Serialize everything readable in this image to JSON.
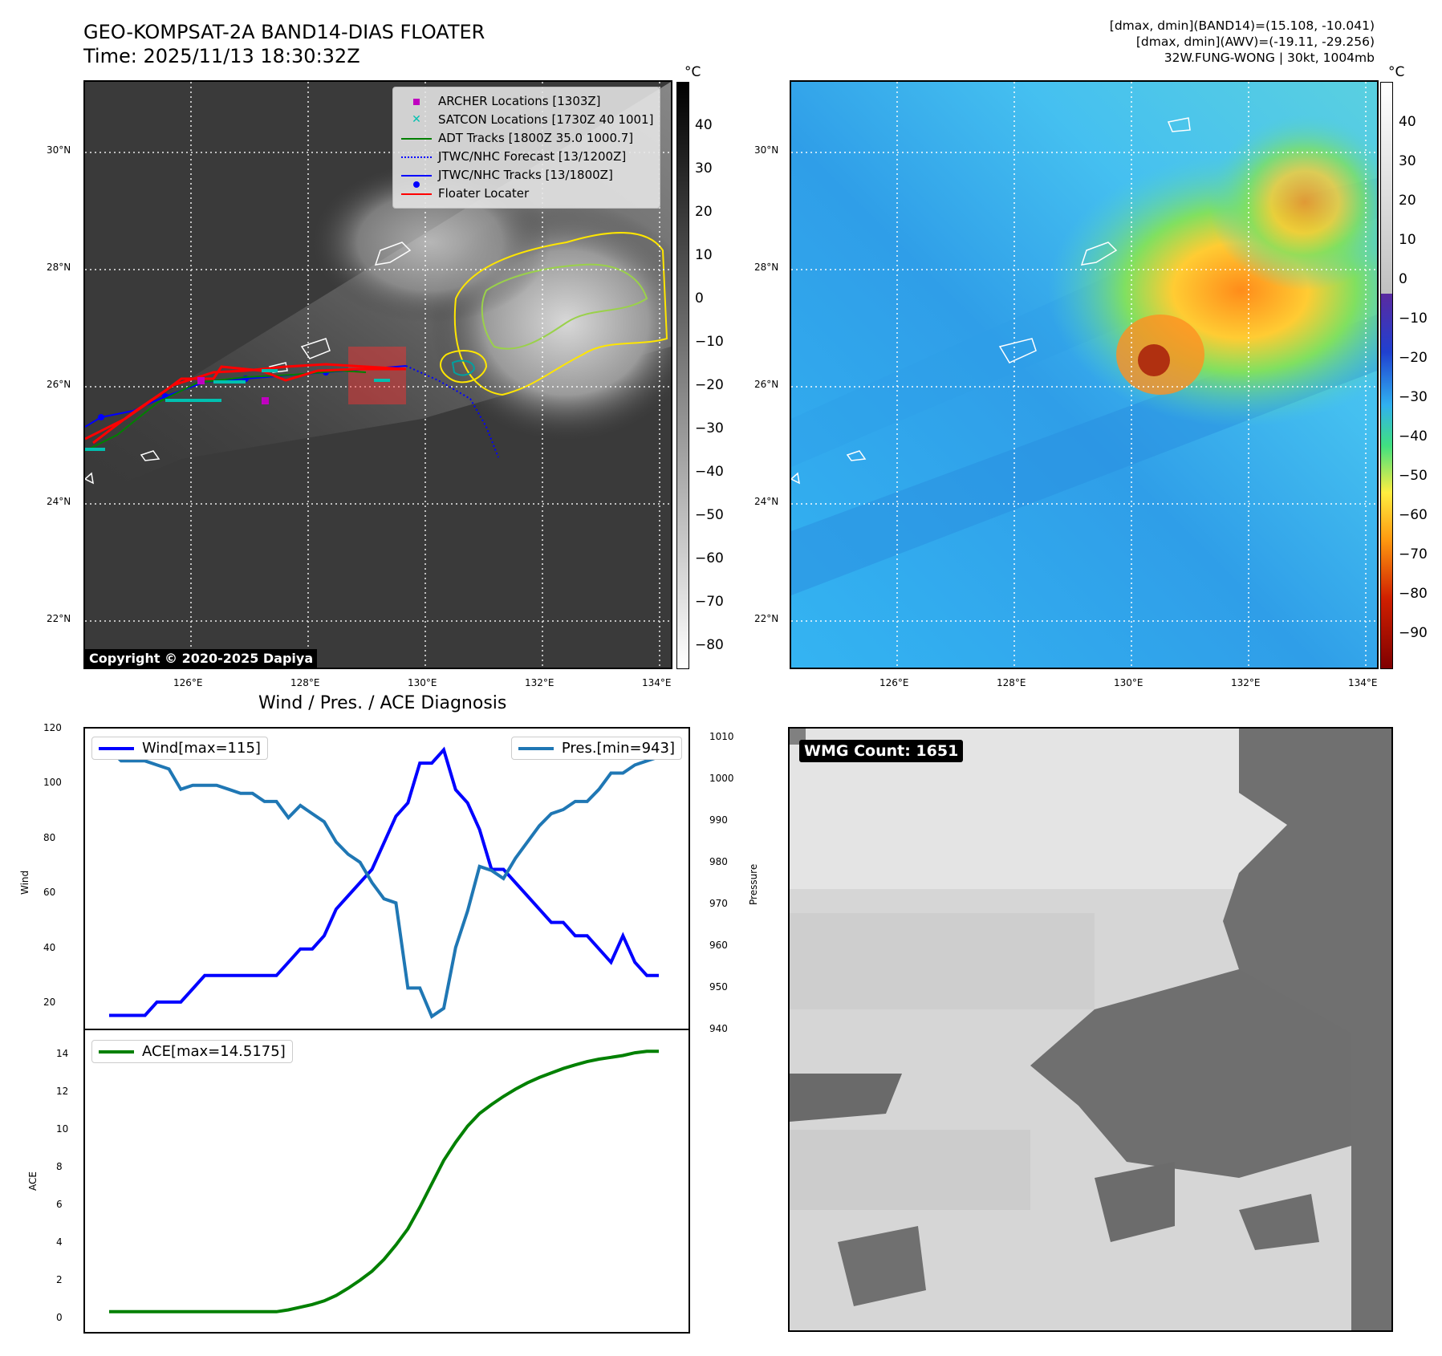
{
  "header": {
    "title_line1": "GEO-KOMPSAT-2A BAND14-DIAS FLOATER",
    "title_line2": "Time: 2025/11/13 18:30:32Z",
    "info_line1": "[dmax, dmin](BAND14)=(15.108, -10.041)",
    "info_line2": "[dmax, dmin](AWV)=(-19.11, -29.256)",
    "info_line3": "32W.FUNG-WONG | 30kt, 1004mb"
  },
  "map": {
    "lat_ticks": [
      "30°N",
      "28°N",
      "26°N",
      "24°N",
      "22°N"
    ],
    "lon_ticks": [
      "126°E",
      "128°E",
      "130°E",
      "132°E",
      "134°E"
    ],
    "legend": [
      {
        "label": "ARCHER Locations [1303Z]",
        "color": "#c000c0",
        "marker": "square"
      },
      {
        "label": "SATCON Locations [1730Z 40 1001]",
        "color": "#00c0b0",
        "marker": "x"
      },
      {
        "label": "ADT Tracks [1800Z 35.0 1000.7]",
        "color": "#008000",
        "marker": "line"
      },
      {
        "label": "JTWC/NHC Forecast [13/1200Z]",
        "color": "#0000ff",
        "marker": "dotted"
      },
      {
        "label": "JTWC/NHC Tracks [13/1800Z]",
        "color": "#0000ff",
        "marker": "line-dot"
      },
      {
        "label": "Floater Locater",
        "color": "#ff0000",
        "marker": "line"
      }
    ],
    "copyright": "Copyright © 2020-2025 Dapiya"
  },
  "colorbar_left": {
    "unit": "°C",
    "ticks": [
      "40",
      "30",
      "20",
      "10",
      "0",
      "−10",
      "−20",
      "−30",
      "−40",
      "−50",
      "−60",
      "−70",
      "−80"
    ]
  },
  "colorbar_right": {
    "unit": "°C",
    "ticks": [
      "40",
      "30",
      "20",
      "10",
      "0",
      "−10",
      "−20",
      "−30",
      "−40",
      "−50",
      "−60",
      "−70",
      "−80",
      "−90"
    ]
  },
  "diagnosis": {
    "title": "Wind / Pres. / ACE Diagnosis",
    "wind_label": "Wind",
    "pressure_label": "Pressure",
    "ace_label": "ACE",
    "wind_legend": "Wind[max=115]",
    "pres_legend": "Pres.[min=943]",
    "ace_legend": "ACE[max=14.5175]",
    "wind_ticks": [
      "120",
      "100",
      "80",
      "60",
      "40",
      "20"
    ],
    "pres_ticks": [
      "1010",
      "1000",
      "990",
      "980",
      "970",
      "960",
      "950",
      "940"
    ],
    "ace_ticks": [
      "14",
      "12",
      "10",
      "8",
      "6",
      "4",
      "2",
      "0"
    ],
    "wind_color": "#0000ff",
    "pres_color": "#1f77b4",
    "ace_color": "#008000"
  },
  "wmg": {
    "label": "WMG Count: 1651"
  },
  "chart_data": [
    {
      "type": "line",
      "title": "Wind / Pres. / ACE Diagnosis",
      "ylabel": "Wind",
      "y2label": "Pressure",
      "ylim": [
        10,
        120
      ],
      "y2lim": [
        940,
        1012
      ],
      "series": [
        {
          "name": "Wind[max=115]",
          "axis": "left",
          "values": [
            15,
            15,
            15,
            15,
            20,
            20,
            20,
            25,
            30,
            30,
            30,
            30,
            30,
            30,
            30,
            35,
            40,
            40,
            45,
            55,
            60,
            65,
            70,
            80,
            90,
            95,
            110,
            110,
            115,
            100,
            95,
            85,
            70,
            70,
            65,
            60,
            55,
            50,
            50,
            45,
            45,
            40,
            35,
            45,
            35,
            30,
            30
          ]
        },
        {
          "name": "Pres.[min=943]",
          "axis": "right",
          "values": [
            1009,
            1006,
            1006,
            1006,
            1005,
            1004,
            999,
            1000,
            1000,
            1000,
            999,
            998,
            998,
            996,
            996,
            992,
            995,
            993,
            991,
            986,
            983,
            981,
            976,
            972,
            971,
            950,
            950,
            943,
            945,
            960,
            969,
            980,
            979,
            977,
            982,
            986,
            990,
            993,
            994,
            996,
            996,
            999,
            1003,
            1003,
            1005,
            1006,
            1007
          ]
        }
      ]
    },
    {
      "type": "area",
      "ylabel": "ACE",
      "ylim": [
        -0.5,
        15
      ],
      "series": [
        {
          "name": "ACE[max=14.5175]",
          "values": [
            0,
            0,
            0,
            0,
            0,
            0,
            0,
            0,
            0,
            0,
            0,
            0,
            0,
            0,
            0,
            0.1,
            0.25,
            0.4,
            0.6,
            0.9,
            1.3,
            1.75,
            2.25,
            2.9,
            3.7,
            4.6,
            5.8,
            7.1,
            8.4,
            9.4,
            10.3,
            11,
            11.5,
            11.95,
            12.35,
            12.7,
            13,
            13.25,
            13.5,
            13.7,
            13.88,
            14.02,
            14.12,
            14.22,
            14.37,
            14.45,
            14.45
          ]
        }
      ]
    }
  ]
}
